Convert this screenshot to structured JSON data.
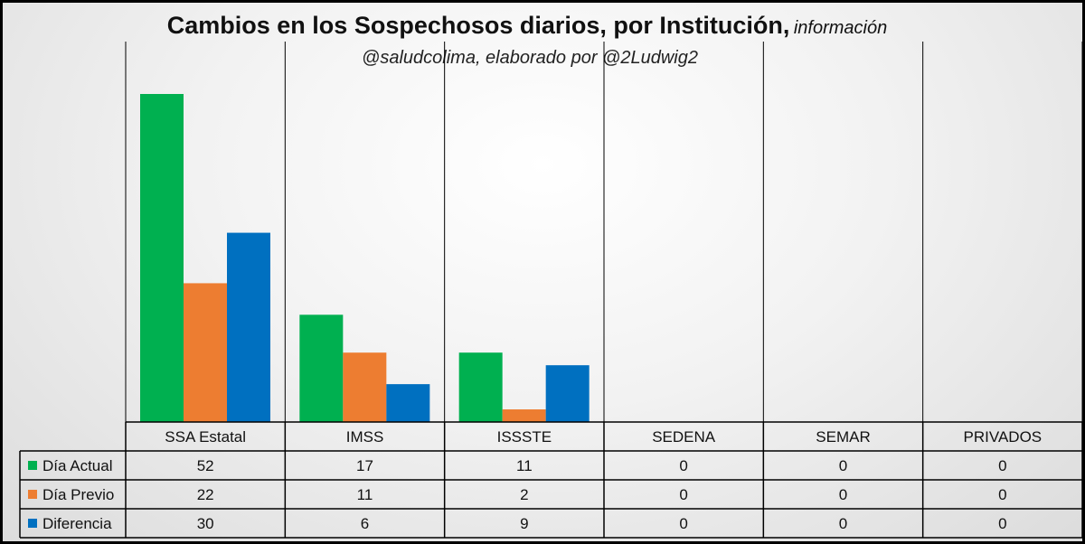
{
  "chart_data": {
    "type": "bar",
    "title": "Cambios en los Sospechosos diarios, por Institución,",
    "title_tail": "información",
    "subtitle": "@saludcolima, elaborado por @2Ludwig2",
    "categories": [
      "SSA Estatal",
      "IMSS",
      "ISSSTE",
      "SEDENA",
      "SEMAR",
      "PRIVADOS"
    ],
    "series": [
      {
        "name": "Día Actual",
        "color": "#00B050",
        "values": [
          52,
          17,
          11,
          0,
          0,
          0
        ]
      },
      {
        "name": "Día Previo",
        "color": "#ED7D31",
        "values": [
          22,
          11,
          2,
          0,
          0,
          0
        ]
      },
      {
        "name": "Diferencia",
        "color": "#0070C0",
        "values": [
          30,
          6,
          9,
          0,
          0,
          0
        ]
      }
    ],
    "ylim": [
      0,
      52
    ],
    "grid": "vertical",
    "legend": "data table"
  }
}
